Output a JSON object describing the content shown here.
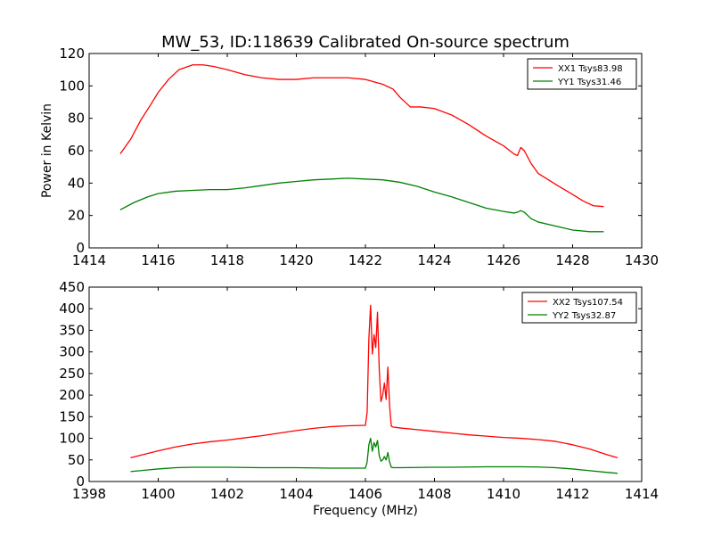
{
  "chart_data": [
    {
      "type": "line",
      "title": "MW_53, ID:118639 Calibrated On-source spectrum",
      "xlabel": "",
      "ylabel": "Power in Kelvin",
      "xlim": [
        1414,
        1430
      ],
      "ylim": [
        0,
        120
      ],
      "xticks": [
        1414,
        1416,
        1418,
        1420,
        1422,
        1424,
        1426,
        1428,
        1430
      ],
      "yticks": [
        0,
        20,
        40,
        60,
        80,
        100,
        120
      ],
      "grid": false,
      "legend_position": "top-right",
      "series": [
        {
          "name": "XX1 Tsys83.98",
          "color": "#ff0000",
          "x": [
            1414.9,
            1415.2,
            1415.5,
            1415.8,
            1416.0,
            1416.3,
            1416.6,
            1417.0,
            1417.3,
            1417.6,
            1418.0,
            1418.5,
            1419.0,
            1419.5,
            1420.0,
            1420.5,
            1421.0,
            1421.5,
            1422.0,
            1422.5,
            1422.8,
            1423.0,
            1423.3,
            1423.6,
            1424.0,
            1424.5,
            1425.0,
            1425.5,
            1426.0,
            1426.3,
            1426.4,
            1426.5,
            1426.6,
            1426.8,
            1427.0,
            1427.3,
            1427.6,
            1428.0,
            1428.3,
            1428.6,
            1428.9
          ],
          "y": [
            58,
            67,
            79,
            89,
            96,
            104,
            110,
            113,
            113,
            112,
            110,
            107,
            105,
            104,
            104,
            105,
            105,
            105,
            104,
            101,
            98,
            93,
            87,
            87,
            86,
            82,
            76,
            69,
            63,
            58,
            57,
            62,
            60,
            52,
            46,
            42,
            38,
            33,
            29,
            26,
            25.5
          ]
        },
        {
          "name": "YY1 Tsys31.46",
          "color": "#008000",
          "x": [
            1414.9,
            1415.3,
            1415.7,
            1416.0,
            1416.5,
            1417.0,
            1417.5,
            1418.0,
            1418.5,
            1419.0,
            1419.5,
            1420.0,
            1420.5,
            1421.0,
            1421.5,
            1422.0,
            1422.5,
            1423.0,
            1423.5,
            1424.0,
            1424.5,
            1425.0,
            1425.5,
            1426.0,
            1426.3,
            1426.4,
            1426.5,
            1426.6,
            1426.8,
            1427.0,
            1427.5,
            1428.0,
            1428.5,
            1428.9
          ],
          "y": [
            23.5,
            28,
            31.5,
            33.5,
            35,
            35.5,
            36,
            36,
            37,
            38.5,
            40,
            41,
            42,
            42.5,
            43,
            42.5,
            42,
            40.5,
            38,
            34.5,
            31.5,
            28,
            24.5,
            22.5,
            21.5,
            22,
            23,
            22,
            18,
            16,
            13.5,
            11,
            10,
            10
          ]
        }
      ]
    },
    {
      "type": "line",
      "title": "",
      "xlabel": "Frequency (MHz)",
      "ylabel": "",
      "xlim": [
        1398,
        1414
      ],
      "ylim": [
        0,
        450
      ],
      "xticks": [
        1398,
        1400,
        1402,
        1404,
        1406,
        1408,
        1410,
        1412,
        1414
      ],
      "yticks": [
        0,
        50,
        100,
        150,
        200,
        250,
        300,
        350,
        400,
        450
      ],
      "grid": false,
      "legend_position": "top-right",
      "series": [
        {
          "name": "XX2 Tsys107.54",
          "color": "#ff0000",
          "x": [
            1399.2,
            1399.6,
            1400.0,
            1400.5,
            1401.0,
            1401.5,
            1402.0,
            1402.5,
            1403.0,
            1403.5,
            1404.0,
            1404.5,
            1405.0,
            1405.5,
            1406.0,
            1406.05,
            1406.1,
            1406.15,
            1406.2,
            1406.25,
            1406.3,
            1406.35,
            1406.4,
            1406.45,
            1406.5,
            1406.55,
            1406.6,
            1406.65,
            1406.7,
            1406.75,
            1406.8,
            1406.9,
            1407.0,
            1407.5,
            1408.0,
            1408.5,
            1409.0,
            1409.5,
            1410.0,
            1410.5,
            1411.0,
            1411.5,
            1412.0,
            1412.5,
            1413.0,
            1413.3
          ],
          "y": [
            55,
            63,
            71,
            80,
            87,
            92,
            96,
            101,
            106,
            112,
            118,
            123,
            127,
            129,
            130,
            160,
            330,
            408,
            295,
            340,
            310,
            392,
            260,
            185,
            200,
            228,
            190,
            265,
            175,
            128,
            126,
            125,
            124,
            120,
            116,
            112,
            108,
            105,
            102,
            100,
            97,
            93,
            85,
            75,
            62,
            55
          ]
        },
        {
          "name": "YY2 Tsys32.87",
          "color": "#008000",
          "x": [
            1399.2,
            1399.6,
            1400.0,
            1400.5,
            1401.0,
            1401.5,
            1402.0,
            1402.5,
            1403.0,
            1403.5,
            1404.0,
            1404.5,
            1405.0,
            1405.5,
            1406.0,
            1406.05,
            1406.1,
            1406.15,
            1406.2,
            1406.25,
            1406.3,
            1406.35,
            1406.4,
            1406.45,
            1406.5,
            1406.55,
            1406.6,
            1406.65,
            1406.7,
            1406.75,
            1406.8,
            1406.9,
            1407.0,
            1407.5,
            1408.0,
            1408.5,
            1409.0,
            1409.5,
            1410.0,
            1410.5,
            1411.0,
            1411.5,
            1412.0,
            1412.5,
            1413.0,
            1413.3
          ],
          "y": [
            23,
            26,
            29,
            32,
            33,
            33,
            33,
            32.5,
            32,
            32,
            32,
            31.5,
            31,
            31,
            31,
            45,
            85,
            100,
            70,
            90,
            80,
            95,
            60,
            47,
            50,
            58,
            50,
            67,
            45,
            33,
            32,
            32,
            32,
            32.5,
            33,
            33,
            33.5,
            34,
            34,
            34,
            33.5,
            32,
            29,
            25,
            21,
            19
          ]
        }
      ]
    }
  ]
}
